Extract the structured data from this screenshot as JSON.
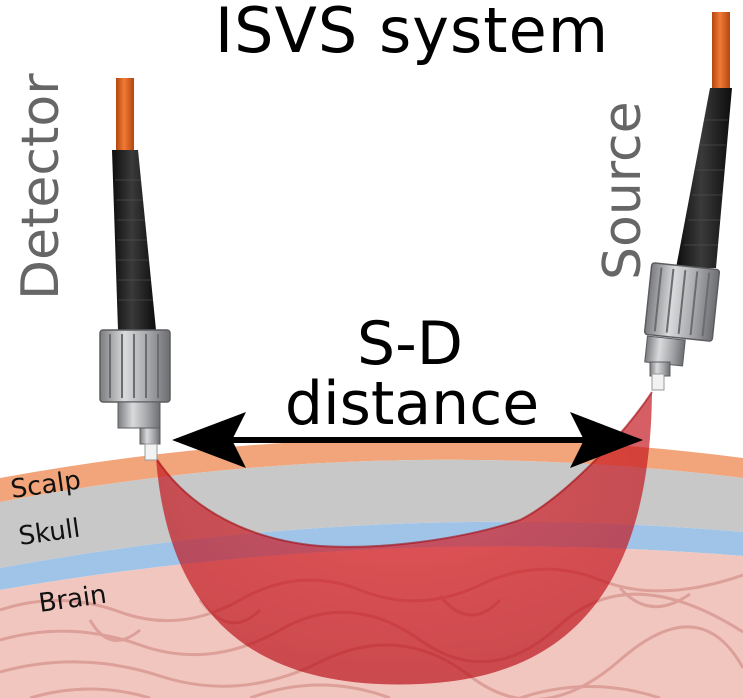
{
  "title": "ISVS system",
  "fibers": {
    "detector_label": "Detector",
    "source_label": "Source"
  },
  "sd_label": {
    "line1": "S-D",
    "line2": "distance"
  },
  "layers": {
    "scalp": "Scalp",
    "skull": "Skull",
    "brain": "Brain"
  },
  "colors": {
    "scalp": "#f2a57a",
    "skull": "#c8c8c8",
    "csf": "#9fc4e8",
    "brain": "#f1c6bf",
    "fiber_jacket": "#e0641f",
    "boot": "#1c1c1c",
    "connector": "#a9aaac",
    "banana": "#d0101a"
  }
}
